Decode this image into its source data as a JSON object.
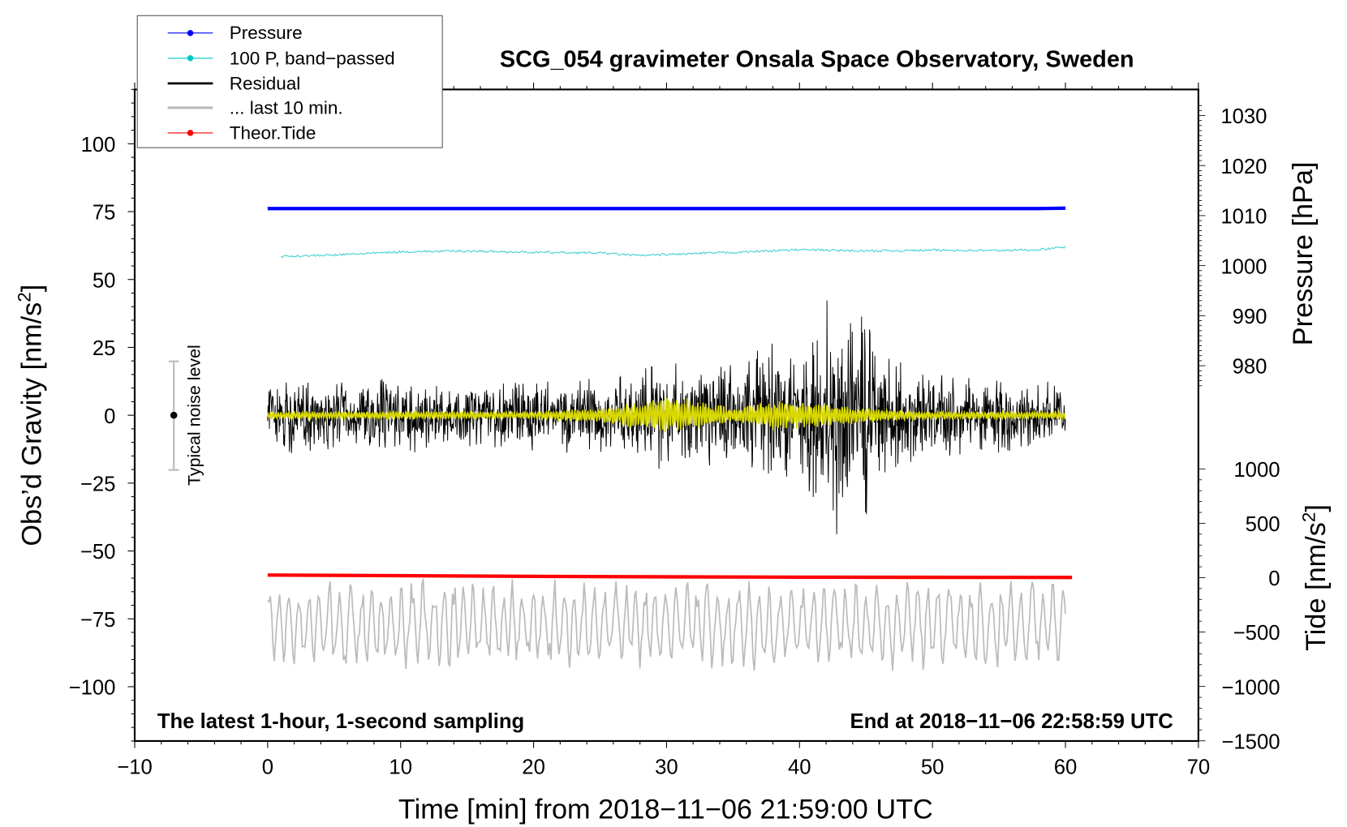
{
  "chart_data": {
    "type": "line",
    "title": "SCG_054 gravimeter Onsala Space Observatory, Sweden",
    "xlabel": "Time [min] from 2018−11−06 21:59:00 UTC",
    "ylabel": "Obs’d Gravity [nm/s",
    "ylabel_sup": "2",
    "ylabel_end": "]",
    "y2label": "Pressure [hPa]",
    "y3label": "Tide [nm/s",
    "y3label_sup": "2",
    "y3label_end": "]",
    "xlim": [
      -10,
      70
    ],
    "ylim": [
      -120,
      120
    ],
    "pressure_lim": [
      976,
      1032
    ],
    "tide_lim": [
      -1500,
      1000
    ],
    "x_ticks": [
      "−10",
      "0",
      "10",
      "20",
      "30",
      "40",
      "50",
      "60",
      "70"
    ],
    "y_ticks": [
      "100",
      "75",
      "50",
      "25",
      "0",
      "−25",
      "−50",
      "−75",
      "−100"
    ],
    "pressure_ticks": [
      "1030",
      "1020",
      "1010",
      "1000",
      "990",
      "980"
    ],
    "tide_ticks": [
      "1000",
      "500",
      "0",
      "−500",
      "−1000",
      "−1500"
    ],
    "annotation_left": "The latest 1-hour, 1-second sampling",
    "annotation_right": "End at 2018−11−06 22:58:59 UTC",
    "noise_label": "Typical noise level",
    "noise_level": [
      -20,
      20
    ],
    "legend": {
      "placement": "top-left",
      "entries": [
        {
          "label": "Pressure",
          "color": "#0000ff"
        },
        {
          "label": "100 P, band−passed",
          "color": "#00c8c8"
        },
        {
          "label": "Residual",
          "color": "#000000"
        },
        {
          "label": "... last 10 min.",
          "color": "#bbbbbb"
        },
        {
          "label": "Theor.Tide",
          "color": "#ff0000"
        }
      ]
    },
    "series": [
      {
        "name": "Pressure",
        "unit": "hPa",
        "x": [
          0,
          58,
          60
        ],
        "values": [
          1011.4,
          1011.4,
          1011.5
        ]
      },
      {
        "name": "100 P, band-passed",
        "unit": "nm/s2 (plot scale)",
        "x": [
          1,
          5,
          10,
          15,
          20,
          25,
          28,
          30,
          35,
          40,
          45,
          50,
          55,
          58,
          60
        ],
        "values": [
          58.5,
          59,
          60.2,
          60.5,
          60,
          59.8,
          58.8,
          59.2,
          60,
          61,
          60.5,
          60.8,
          60.7,
          61,
          62
        ]
      },
      {
        "name": "Residual amplitude envelope",
        "unit": "nm/s2",
        "x": [
          0,
          5,
          10,
          15,
          20,
          25,
          28,
          30,
          32,
          35,
          38,
          40,
          42,
          43,
          44,
          45,
          46,
          48,
          50,
          55,
          60
        ],
        "values": [
          14,
          14,
          15,
          14,
          14,
          16,
          18,
          24,
          22,
          22,
          28,
          30,
          45,
          48,
          46,
          44,
          30,
          20,
          16,
          15,
          14
        ]
      },
      {
        "name": "Residual filtered (yellow) amplitude",
        "unit": "nm/s2",
        "x": [
          0,
          20,
          25,
          29,
          30,
          32,
          35,
          38,
          40,
          43,
          45,
          50,
          60
        ],
        "values": [
          1.5,
          1.5,
          3,
          6,
          8,
          6,
          3,
          6,
          5,
          4,
          3,
          1.5,
          1.5
        ]
      },
      {
        "name": "... last 10 min.",
        "unit": "nm/s2",
        "center": -77,
        "amplitude": 16
      },
      {
        "name": "Theor.Tide",
        "unit": "nm/s2",
        "x": [
          0,
          10,
          20,
          30,
          40,
          50,
          60.5
        ],
        "values": [
          24,
          18,
          12,
          8,
          5,
          3,
          2
        ]
      }
    ]
  }
}
